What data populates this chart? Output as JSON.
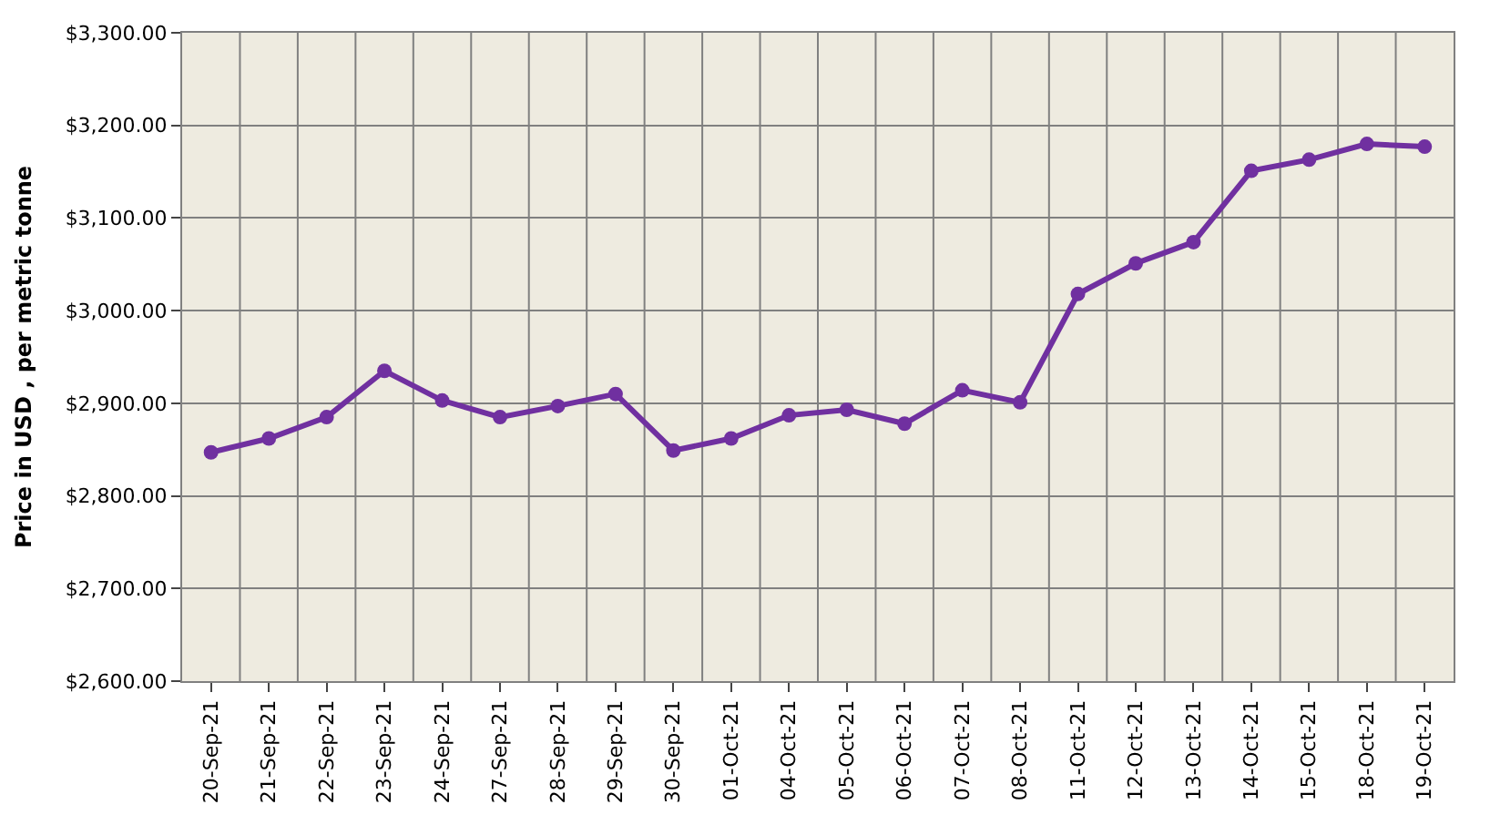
{
  "chart_data": {
    "type": "line",
    "ylabel": "Price in USD , per metric tonne",
    "categories": [
      "20-Sep-21",
      "21-Sep-21",
      "22-Sep-21",
      "23-Sep-21",
      "24-Sep-21",
      "27-Sep-21",
      "28-Sep-21",
      "29-Sep-21",
      "30-Sep-21",
      "01-Oct-21",
      "04-Oct-21",
      "05-Oct-21",
      "06-Oct-21",
      "07-Oct-21",
      "08-Oct-21",
      "11-Oct-21",
      "12-Oct-21",
      "13-Oct-21",
      "14-Oct-21",
      "15-Oct-21",
      "18-Oct-21",
      "19-Oct-21"
    ],
    "series": [
      {
        "color": "#7030a0",
        "values": [
          2847,
          2862,
          2885,
          2935,
          2903,
          2885,
          2897,
          2910,
          2849,
          2862,
          2887,
          2893,
          2878,
          2914,
          2901,
          3018,
          3051,
          3074,
          3151,
          3163,
          3180,
          3177
        ]
      }
    ],
    "ylim": [
      2600,
      3300
    ],
    "yticks": [
      {
        "value": 2600,
        "label": "$2,600.00"
      },
      {
        "value": 2700,
        "label": "$2,700.00"
      },
      {
        "value": 2800,
        "label": "$2,800.00"
      },
      {
        "value": 2900,
        "label": "$2,900.00"
      },
      {
        "value": 3000,
        "label": "$3,000.00"
      },
      {
        "value": 3100,
        "label": "$3,100.00"
      },
      {
        "value": 3200,
        "label": "$3,200.00"
      },
      {
        "value": 3300,
        "label": "$3,300.00"
      }
    ],
    "grid": true,
    "marker": "circle",
    "line_style": "solid",
    "legend": false
  }
}
